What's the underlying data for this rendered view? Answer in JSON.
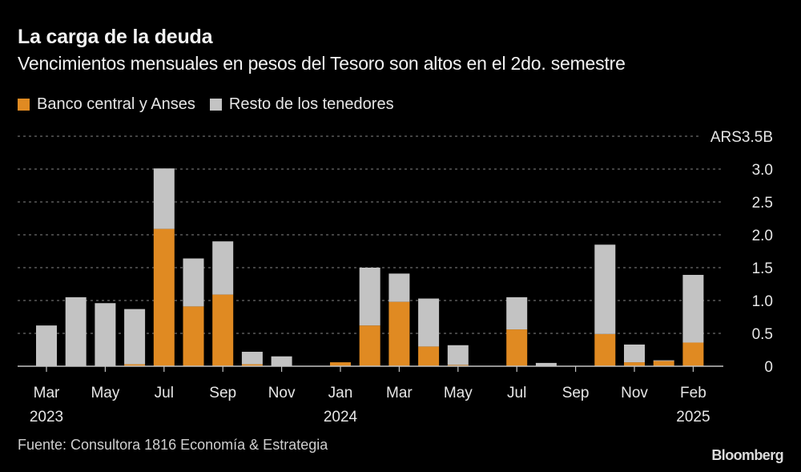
{
  "header": {
    "title": "La carga de la deuda",
    "subtitle": "Vencimientos mensuales en pesos del Tesoro son altos en el 2do. semestre"
  },
  "footer": {
    "source": "Fuente: Consultora 1816 Economía & Estrategia",
    "brand": "Bloomberg"
  },
  "colors": {
    "background": "#000000",
    "banco_central": "#e08a22",
    "resto": "#c3c3c3",
    "grid": "#6b6b6b",
    "axis": "#c3c3c3",
    "text": "#e6e6e6"
  },
  "chart_data": {
    "type": "bar",
    "stacked": true,
    "title": "La carga de la deuda",
    "subtitle": "Vencimientos mensuales en pesos del Tesoro son altos en el 2do. semestre",
    "xlabel": "",
    "ylabel": "",
    "y_unit_label": "ARS3.5B",
    "ylim": [
      0,
      3.5
    ],
    "yticks": [
      0,
      0.5,
      1.0,
      1.5,
      2.0,
      2.5,
      3.0,
      3.5
    ],
    "ytick_labels": [
      "0",
      "0.5",
      "1.0",
      "1.5",
      "2.0",
      "2.5",
      "3.0",
      "ARS3.5B"
    ],
    "grid": true,
    "legend_position": "top-left",
    "categories": [
      "Mar 2023",
      "Apr 2023",
      "May 2023",
      "Jun 2023",
      "Jul 2023",
      "Aug 2023",
      "Sep 2023",
      "Oct 2023",
      "Nov 2023",
      "Dec 2023",
      "Jan 2024",
      "Feb 2024",
      "Mar 2024",
      "Apr 2024",
      "May 2024",
      "Jun 2024",
      "Jul 2024",
      "Aug 2024",
      "Sep 2024",
      "Oct 2024",
      "Nov 2024",
      "Dec 2024",
      "Feb 2025"
    ],
    "x_tick_labels": [
      {
        "index": 0,
        "line1": "Mar",
        "line2": "2023"
      },
      {
        "index": 2,
        "line1": "May",
        "line2": ""
      },
      {
        "index": 4,
        "line1": "Jul",
        "line2": ""
      },
      {
        "index": 6,
        "line1": "Sep",
        "line2": ""
      },
      {
        "index": 8,
        "line1": "Nov",
        "line2": ""
      },
      {
        "index": 10,
        "line1": "Jan",
        "line2": "2024"
      },
      {
        "index": 12,
        "line1": "Mar",
        "line2": ""
      },
      {
        "index": 14,
        "line1": "May",
        "line2": ""
      },
      {
        "index": 16,
        "line1": "Jul",
        "line2": ""
      },
      {
        "index": 18,
        "line1": "Sep",
        "line2": ""
      },
      {
        "index": 20,
        "line1": "Nov",
        "line2": ""
      },
      {
        "index": 22,
        "line1": "Feb",
        "line2": "2025"
      }
    ],
    "series": [
      {
        "name": "Banco central y Anses",
        "color": "#e08a22",
        "values": [
          0,
          0,
          0,
          0.03,
          2.09,
          0.91,
          1.09,
          0.03,
          0,
          0,
          0.06,
          0.62,
          0.98,
          0.3,
          0.02,
          0,
          0.56,
          0,
          0,
          0.49,
          0.06,
          0.08,
          0.36
        ]
      },
      {
        "name": "Resto de los tenedores",
        "color": "#c3c3c3",
        "values": [
          0.62,
          1.05,
          0.96,
          0.84,
          0.92,
          0.73,
          0.81,
          0.19,
          0.15,
          0,
          0,
          0.88,
          0.43,
          0.73,
          0.3,
          0,
          0.49,
          0.05,
          0,
          1.36,
          0.27,
          0.01,
          1.03
        ]
      }
    ]
  }
}
